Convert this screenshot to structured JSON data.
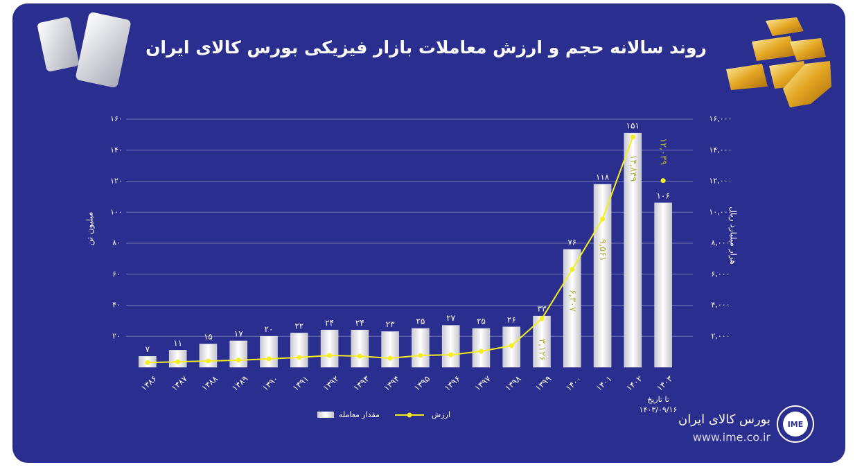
{
  "chart_data": {
    "type": "bar",
    "title": "روند سالانه حجم و ارزش معاملات بازار فیزیکی بورس کالای ایران",
    "y_label": "میلیون تن",
    "y2_label": "هزار میلیارد ریال",
    "categories": [
      "۱۳۸۶",
      "۱۳۸۷",
      "۱۳۸۸",
      "۱۳۸۹",
      "۱۳۹۰",
      "۱۳۹۱",
      "۱۳۹۲",
      "۱۳۹۳",
      "۱۳۹۴",
      "۱۳۹۵",
      "۱۳۹۶",
      "۱۳۹۷",
      "۱۳۹۸",
      "۱۳۹۹",
      "۱۴۰۰",
      "۱۴۰۱",
      "۱۴۰۲",
      "۱۴۰۳"
    ],
    "series": [
      {
        "name": "مقدار معامله",
        "type": "bar",
        "color": "#e6e6ea",
        "values": [
          7,
          11,
          15,
          17,
          20,
          22,
          24,
          24,
          23,
          25,
          27,
          25,
          26,
          33,
          76,
          118,
          151,
          106
        ],
        "value_labels": [
          "۷",
          "۱۱",
          "۱۵",
          "۱۷",
          "۲۰",
          "۲۲",
          "۲۴",
          "۲۴",
          "۲۳",
          "۲۵",
          "۲۷",
          "۲۵",
          "۲۶",
          "۳۳",
          "۷۶",
          "۱۱۸",
          "۱۵۱",
          "۱۰۶"
        ]
      },
      {
        "name": "ارزش",
        "type": "line",
        "axis": "y2",
        "color": "#f7ee1d",
        "label_color": "#b5b23a",
        "values": [
          300,
          350,
          400,
          450,
          540,
          630,
          760,
          715,
          580,
          760,
          800,
          1030,
          1390,
          3126,
          6307,
          9561,
          14849,
          12039
        ],
        "value_labels": [
          null,
          null,
          null,
          null,
          null,
          null,
          null,
          null,
          null,
          null,
          null,
          null,
          null,
          "۳,۱۲۶",
          "۶,۳۰۷",
          "۹,۵۶۱",
          "۱۴,۸۴۹",
          "۱۲,۰۳۹"
        ]
      }
    ],
    "ylim": [
      0,
      160
    ],
    "yticks": [
      {
        "value": 20,
        "label": "۲۰"
      },
      {
        "value": 40,
        "label": "۴۰"
      },
      {
        "value": 60,
        "label": "۶۰"
      },
      {
        "value": 80,
        "label": "۸۰"
      },
      {
        "value": 100,
        "label": "۱۰۰"
      },
      {
        "value": 120,
        "label": "۱۲۰"
      },
      {
        "value": 140,
        "label": "۱۴۰"
      },
      {
        "value": 160,
        "label": "۱۶۰"
      }
    ],
    "y2lim": [
      0,
      16000
    ],
    "y2ticks": [
      {
        "value": 2000,
        "label": "۲,۰۰۰"
      },
      {
        "value": 4000,
        "label": "۴,۰۰۰"
      },
      {
        "value": 6000,
        "label": "۶,۰۰۰"
      },
      {
        "value": 8000,
        "label": "۸,۰۰۰"
      },
      {
        "value": 10000,
        "label": "۱۰,۰۰۰"
      },
      {
        "value": 12000,
        "label": "۱۲,۰۰۰"
      },
      {
        "value": 14000,
        "label": "۱۴,۰۰۰"
      },
      {
        "value": 16000,
        "label": "۱۶,۰۰۰"
      }
    ],
    "grid": true,
    "annotation": [
      "تا تاریخ",
      "۱۴۰۳/۰۹/۱۶"
    ]
  },
  "brand": {
    "logo": "IME",
    "name": "بورس کالای ایران",
    "url": "www.ime.co.ir"
  }
}
